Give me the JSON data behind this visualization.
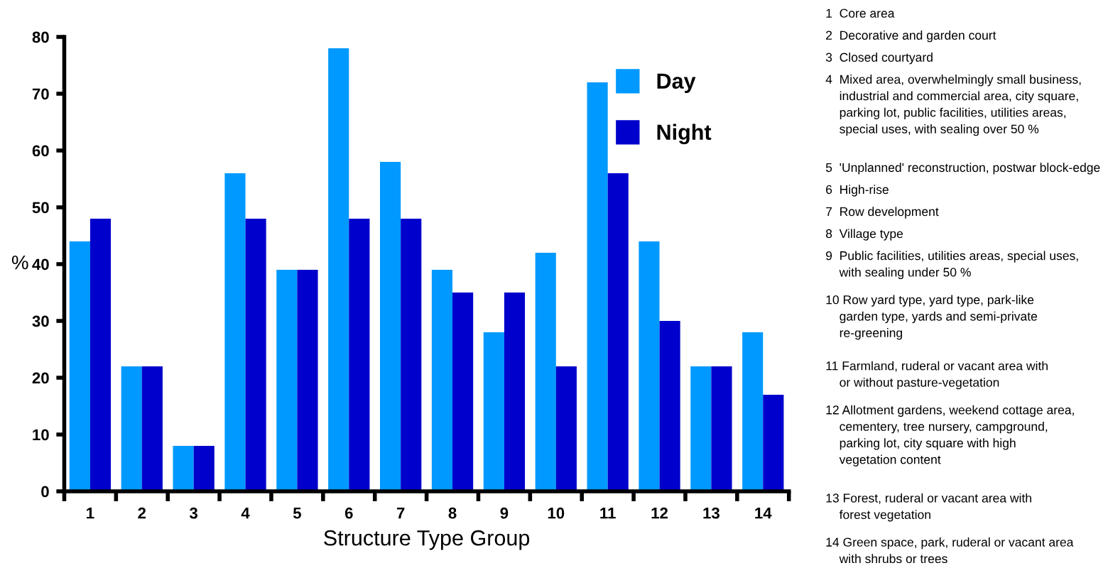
{
  "chart_data": {
    "type": "bar",
    "xlabel": "Structure Type Group",
    "ylabel": "%",
    "categories": [
      "1",
      "2",
      "3",
      "4",
      "5",
      "6",
      "7",
      "8",
      "9",
      "10",
      "11",
      "12",
      "13",
      "14"
    ],
    "series": [
      {
        "name": "Day",
        "color": "#0099ff",
        "values": [
          44,
          22,
          8,
          56,
          39,
          78,
          58,
          39,
          28,
          42,
          72,
          44,
          22,
          28
        ]
      },
      {
        "name": "Night",
        "color": "#0000cc",
        "values": [
          48,
          22,
          8,
          48,
          39,
          48,
          48,
          35,
          35,
          22,
          56,
          30,
          22,
          17
        ]
      }
    ],
    "ylim": [
      0,
      80
    ],
    "yticks": [
      0,
      10,
      20,
      30,
      40,
      50,
      60,
      70,
      80
    ],
    "grid": false,
    "legend": "top right",
    "annotations": [
      "1  Core area",
      "2  Decorative and garden court",
      "3  Closed courtyard",
      "4  Mixed area, overwhelmingly small business,\n    industrial and commercial area, city square,\n    parking lot, public facilities, utilities areas,\n    special uses, with sealing over 50 %",
      "5  'Unplanned' reconstruction, postwar block-edge",
      "6  High-rise",
      "7  Row development",
      "8  Village type",
      "9  Public facilities, utilities areas, special uses,\n    with sealing under 50 %",
      "10 Row yard type, yard type, park-like\n    garden type, yards and semi-private\n    re-greening",
      "11 Farmland, ruderal or vacant area with\n    or without pasture-vegetation",
      "12 Allotment gardens, weekend cottage area,\n    cementery, tree nursery, campground,\n    parking lot, city square with high\n    vegetation content",
      "13 Forest, ruderal or vacant area with\n    forest vegetation",
      "14 Green space, park, ruderal or vacant area\n    with shrubs or trees"
    ]
  }
}
